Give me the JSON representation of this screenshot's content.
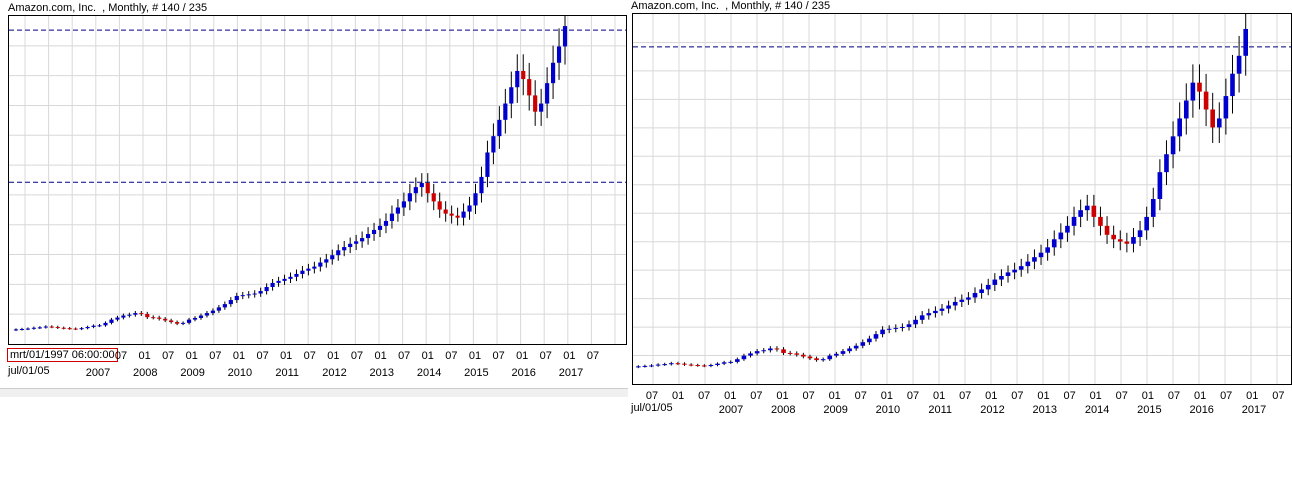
{
  "panels": [
    {
      "title": "Amazon.com, Inc.  , Monthly, # 140 / 235",
      "cursor_label": "mrt/01/1997 06:00:00",
      "start_label": "jul/01/05",
      "month_labels": [
        "07",
        "01",
        "07",
        "01",
        "07",
        "01",
        "07",
        "01",
        "07",
        "01",
        "07",
        "01",
        "07",
        "01",
        "07",
        "01",
        "07",
        "01",
        "07",
        "01",
        "07"
      ],
      "year_labels": [
        "2007",
        "2008",
        "2009",
        "2010",
        "2011",
        "2012",
        "2013",
        "2014",
        "2015",
        "2016",
        "2017"
      ]
    },
    {
      "title": "Amazon.com, Inc.  , Monthly, # 140 / 235",
      "start_label": "jul/01/05",
      "month_labels": [
        "07",
        "01",
        "07",
        "01",
        "07",
        "01",
        "07",
        "01",
        "07",
        "01",
        "07",
        "01",
        "07",
        "01",
        "07",
        "01",
        "07",
        "01",
        "07",
        "01",
        "07",
        "01",
        "07",
        "01",
        "07"
      ],
      "year_labels": [
        "2007",
        "2008",
        "2009",
        "2010",
        "2011",
        "2012",
        "2013",
        "2014",
        "2015",
        "2016",
        "2017"
      ]
    }
  ],
  "colors": {
    "up": "#0000cc",
    "down": "#cc0000",
    "grid": "#d8d8d8",
    "hline": "#000080"
  },
  "chart_data": [
    {
      "type": "candlestick",
      "title": "Amazon.com, Inc.  , Monthly, # 140 / 235",
      "xlabel": "",
      "ylabel": "",
      "x_range": [
        "2005-07",
        "2017-07"
      ],
      "y_range_estimate": [
        20,
        800
      ],
      "horizontal_levels": [
        780,
        407
      ],
      "grid": true,
      "series": [
        {
          "ohlc_close_approx": [
            46,
            47,
            48,
            50,
            51,
            53,
            52,
            50,
            49,
            48,
            47,
            49,
            52,
            55,
            56,
            62,
            70,
            75,
            80,
            82,
            86,
            84,
            76,
            75,
            72,
            68,
            64,
            60,
            62,
            70,
            74,
            80,
            86,
            92,
            100,
            108,
            118,
            128,
            130,
            132,
            134,
            140,
            150,
            160,
            165,
            170,
            175,
            182,
            190,
            195,
            200,
            210,
            218,
            228,
            240,
            248,
            256,
            262,
            270,
            280,
            290,
            300,
            312,
            330,
            345,
            360,
            380,
            395,
            405,
            380,
            360,
            340,
            330,
            325,
            320,
            335,
            350,
            380,
            420,
            480,
            520,
            560,
            600,
            640,
            680,
            660,
            620,
            580,
            600,
            650,
            700,
            740,
            790
          ]
        }
      ]
    },
    {
      "type": "candlestick",
      "title": "Amazon.com, Inc.  , Monthly, # 140 / 235",
      "xlabel": "",
      "ylabel": "",
      "x_range": [
        "2005-07",
        "2017-07"
      ],
      "y_range_estimate": [
        20,
        820
      ],
      "horizontal_levels": [
        760
      ],
      "grid": true,
      "series": [
        {
          "ohlc_close_approx": [
            46,
            47,
            48,
            50,
            51,
            53,
            52,
            50,
            49,
            48,
            47,
            49,
            52,
            55,
            56,
            62,
            70,
            75,
            80,
            82,
            86,
            84,
            76,
            75,
            72,
            68,
            64,
            60,
            62,
            70,
            74,
            80,
            86,
            92,
            100,
            108,
            118,
            128,
            130,
            132,
            134,
            140,
            150,
            160,
            165,
            170,
            175,
            182,
            190,
            195,
            200,
            210,
            218,
            228,
            240,
            248,
            256,
            262,
            270,
            280,
            290,
            300,
            312,
            330,
            345,
            360,
            380,
            395,
            405,
            380,
            360,
            340,
            330,
            325,
            320,
            335,
            350,
            380,
            420,
            480,
            520,
            560,
            600,
            640,
            680,
            660,
            620,
            580,
            600,
            650,
            700,
            740,
            800
          ]
        }
      ]
    }
  ]
}
